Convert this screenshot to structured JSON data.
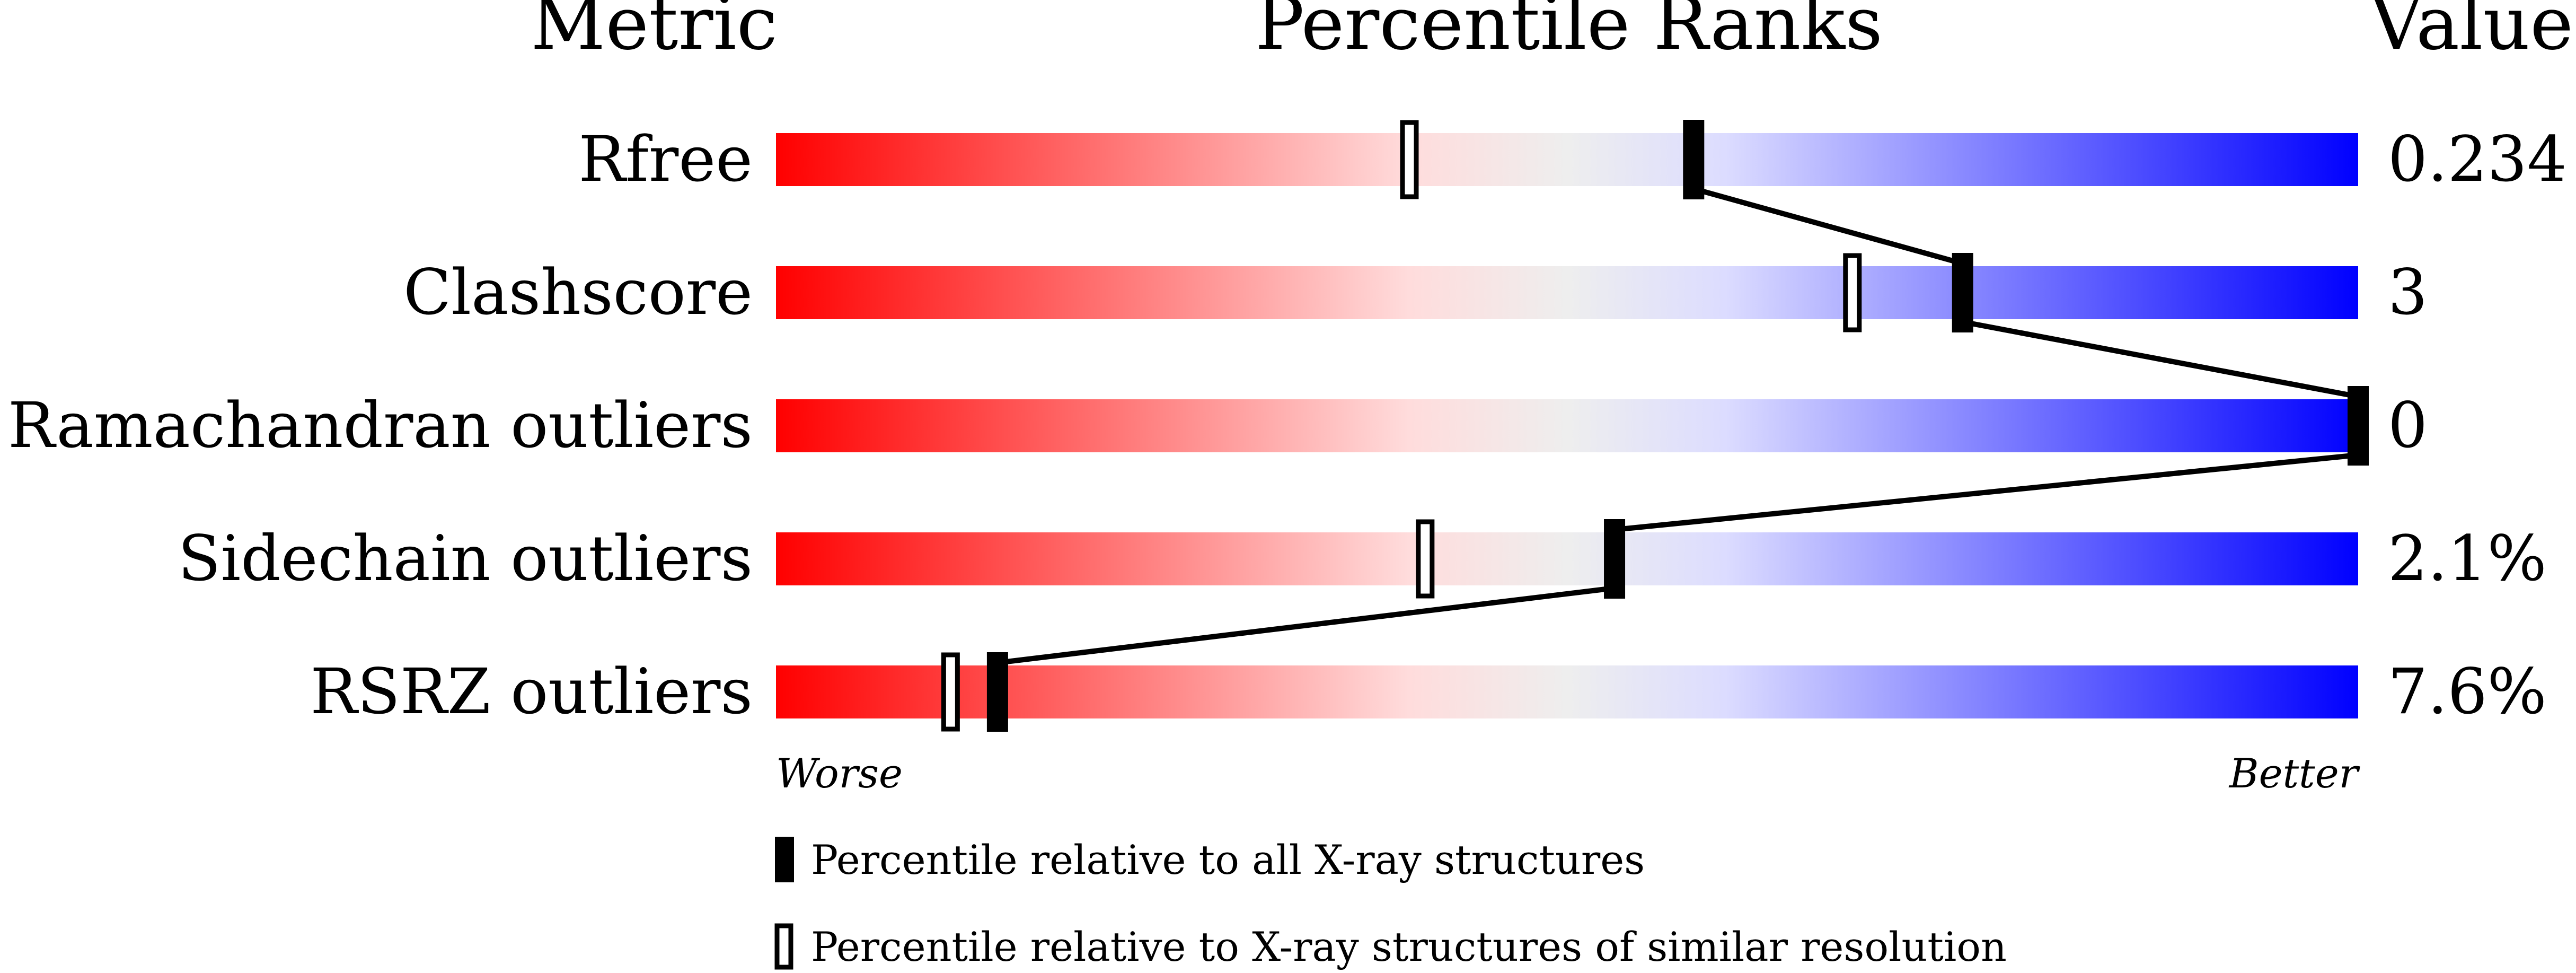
{
  "chart_data": {
    "type": "percentile-slider",
    "headers": {
      "metric": "Metric",
      "ranks": "Percentile Ranks",
      "value": "Value"
    },
    "axis": {
      "left_label": "Worse",
      "right_label": "Better",
      "range": [
        0,
        100
      ]
    },
    "gradient_colors": [
      "#ff0000",
      "#ffdcdc",
      "#eeeeee",
      "#dcdcff",
      "#0000ff"
    ],
    "metrics": [
      {
        "name": "Rfree",
        "value": "0.234",
        "percentile_all": 58,
        "percentile_similar": 40
      },
      {
        "name": "Clashscore",
        "value": "3",
        "percentile_all": 75,
        "percentile_similar": 68
      },
      {
        "name": "Ramachandran outliers",
        "value": "0",
        "percentile_all": 100,
        "percentile_similar": 100
      },
      {
        "name": "Sidechain outliers",
        "value": "2.1%",
        "percentile_all": 53,
        "percentile_similar": 41
      },
      {
        "name": "RSRZ outliers",
        "value": "7.6%",
        "percentile_all": 14,
        "percentile_similar": 11
      }
    ],
    "legend": {
      "filled": "Percentile relative to all X-ray structures",
      "open": "Percentile relative to X-ray structures of similar resolution"
    }
  }
}
